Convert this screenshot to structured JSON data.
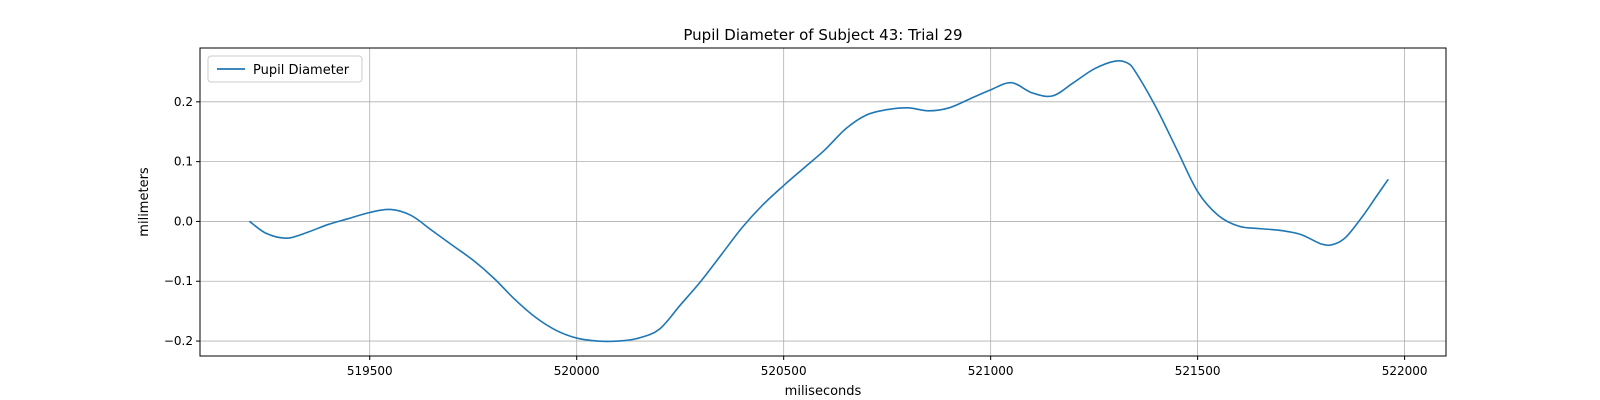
{
  "chart_data": {
    "type": "line",
    "title": "Pupil Diameter of Subject 43: Trial 29",
    "xlabel": "miliseconds",
    "ylabel": "milimeters",
    "xlim": [
      519090,
      522100
    ],
    "ylim": [
      -0.225,
      0.29
    ],
    "xticks": [
      519500,
      520000,
      520500,
      521000,
      521500,
      522000
    ],
    "yticks": [
      -0.2,
      -0.1,
      0.0,
      0.1,
      0.2
    ],
    "ytick_labels": [
      "−0.2",
      "−0.1",
      "0.0",
      "0.1",
      "0.2"
    ],
    "grid": true,
    "legend_position": "top-left",
    "series": [
      {
        "name": "Pupil Diameter",
        "color": "#1f77b4",
        "x": [
          519210,
          519250,
          519300,
          519350,
          519400,
          519450,
          519500,
          519550,
          519600,
          519650,
          519700,
          519750,
          519800,
          519850,
          519900,
          519950,
          520000,
          520050,
          520100,
          520150,
          520200,
          520250,
          520300,
          520350,
          520400,
          520450,
          520500,
          520550,
          520600,
          520650,
          520700,
          520750,
          520800,
          520850,
          520900,
          520950,
          521000,
          521050,
          521100,
          521150,
          521200,
          521250,
          521300,
          521330,
          521350,
          521400,
          521450,
          521500,
          521550,
          521600,
          521650,
          521700,
          521750,
          521800,
          521830,
          521860,
          521900,
          521930,
          521960
        ],
        "y": [
          0.0,
          -0.02,
          -0.028,
          -0.018,
          -0.005,
          0.005,
          0.015,
          0.02,
          0.01,
          -0.015,
          -0.04,
          -0.065,
          -0.095,
          -0.13,
          -0.16,
          -0.182,
          -0.195,
          -0.2,
          -0.2,
          -0.195,
          -0.18,
          -0.14,
          -0.1,
          -0.055,
          -0.01,
          0.028,
          0.06,
          0.09,
          0.12,
          0.155,
          0.178,
          0.187,
          0.19,
          0.185,
          0.19,
          0.205,
          0.22,
          0.232,
          0.215,
          0.21,
          0.232,
          0.255,
          0.268,
          0.265,
          0.25,
          0.19,
          0.12,
          0.05,
          0.01,
          -0.008,
          -0.012,
          -0.015,
          -0.022,
          -0.038,
          -0.038,
          -0.025,
          0.01,
          0.04,
          0.07
        ]
      }
    ]
  }
}
